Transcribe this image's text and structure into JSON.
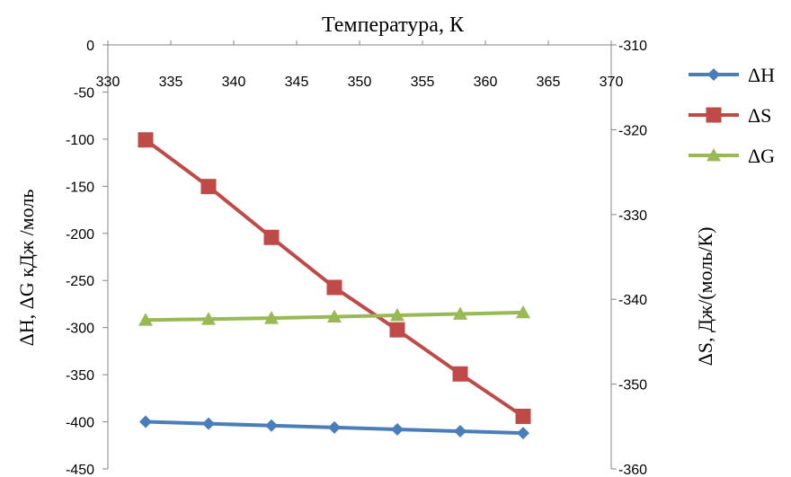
{
  "chart_data": {
    "type": "line",
    "title": "Температура, К",
    "xlabel": "Температура, К",
    "ylabel_left": "ΔH, ΔG кДж /моль",
    "ylabel_right": "ΔS, Дж/(моль/К)",
    "x_ticks": [
      "330",
      "335",
      "340",
      "345",
      "350",
      "355",
      "360",
      "365",
      "370"
    ],
    "xlim": [
      330,
      370
    ],
    "left_ticks": [
      "0",
      "-50",
      "-100",
      "-150",
      "-200",
      "-250",
      "-300",
      "-350",
      "-400",
      "-450"
    ],
    "left_ylim": [
      -450,
      0
    ],
    "right_ticks": [
      "-310",
      "-320",
      "-330",
      "-340",
      "-350",
      "-360"
    ],
    "right_ylim": [
      -360,
      -310
    ],
    "x_axis_position": "top",
    "grid": false,
    "legend_position": "right",
    "x": [
      333,
      338,
      343,
      348,
      353,
      358,
      363
    ],
    "series": [
      {
        "name": "ΔH",
        "axis": "left",
        "color": "#4a7ebb",
        "marker": "diamond",
        "values": [
          -400,
          -402,
          -404,
          -406,
          -408,
          -410,
          -412
        ]
      },
      {
        "name": "ΔS",
        "axis": "right",
        "color": "#be4b48",
        "marker": "square",
        "values": [
          -321.2,
          -326.7,
          -332.7,
          -338.6,
          -343.6,
          -348.8,
          -353.8
        ]
      },
      {
        "name": "ΔG",
        "axis": "left",
        "color": "#98b954",
        "marker": "triangle",
        "values": [
          -292,
          -291,
          -290,
          -288.5,
          -287,
          -285.5,
          -284
        ]
      }
    ]
  }
}
